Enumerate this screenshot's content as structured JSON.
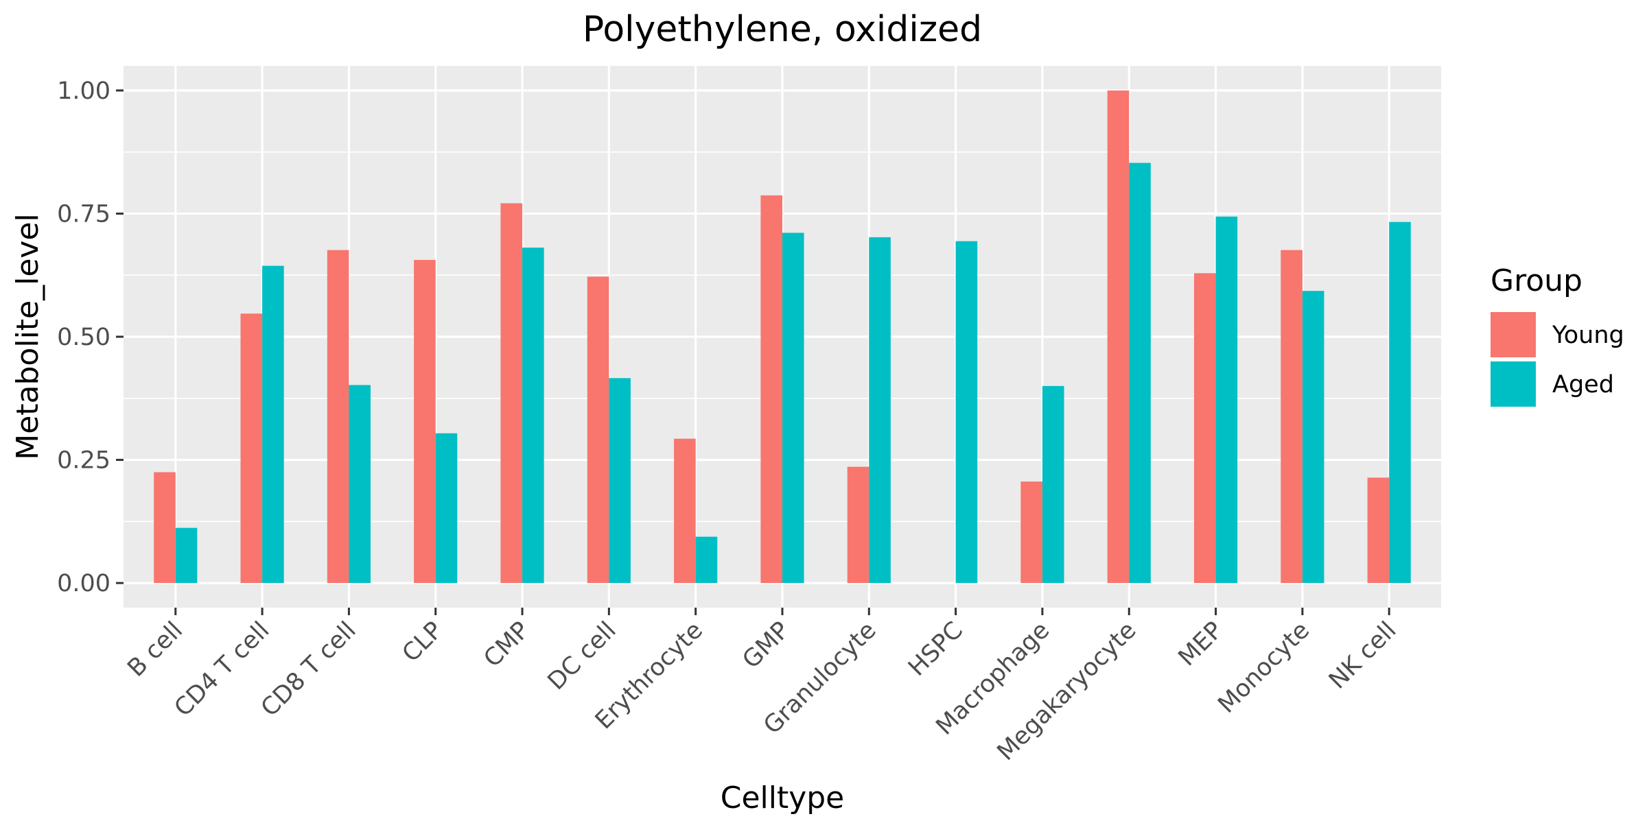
{
  "chart_data": {
    "type": "bar",
    "title": "Polyethylene, oxidized",
    "xlabel": "Celltype",
    "ylabel": "Metabolite_level",
    "ylim": [
      -0.05,
      1.05
    ],
    "yticks": [
      0.0,
      0.25,
      0.5,
      0.75,
      1.0
    ],
    "ytick_labels": [
      "0.00",
      "0.25",
      "0.50",
      "0.75",
      "1.00"
    ],
    "grid": true,
    "categories": [
      "B cell",
      "CD4 T cell",
      "CD8 T cell",
      "CLP",
      "CMP",
      "DC cell",
      "Erythrocyte",
      "GMP",
      "Granulocyte",
      "HSPC",
      "Macrophage",
      "Megakaryocyte",
      "MEP",
      "Monocyte",
      "NK cell"
    ],
    "series": [
      {
        "name": "Young",
        "color": "#F8766D",
        "values": [
          0.225,
          0.547,
          0.676,
          0.656,
          0.771,
          0.622,
          0.293,
          0.787,
          0.236,
          null,
          0.206,
          1.0,
          0.629,
          0.676,
          0.214
        ]
      },
      {
        "name": "Aged",
        "color": "#00BFC4",
        "values": [
          0.112,
          0.644,
          0.402,
          0.304,
          0.681,
          0.416,
          0.094,
          0.711,
          0.702,
          0.694,
          0.4,
          0.853,
          0.744,
          0.593,
          0.733
        ]
      }
    ],
    "legend": {
      "title": "Group",
      "position": "right"
    }
  }
}
